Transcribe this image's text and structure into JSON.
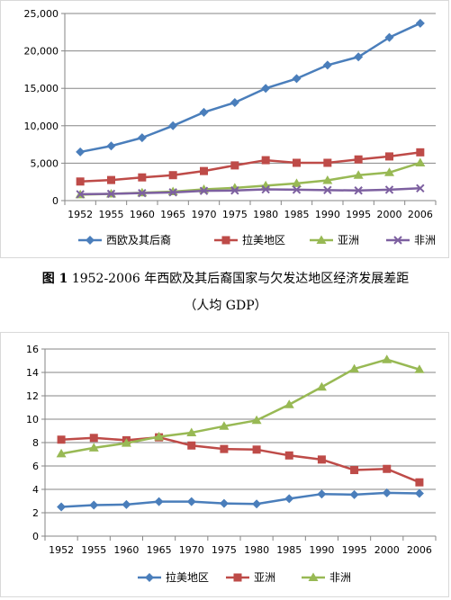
{
  "caption": {
    "fig_label": "图 1",
    "line1": "1952-2006 年西欧及其后裔国家与欠发达地区经济发展差距",
    "line2": "（人均 GDP）"
  },
  "colors": {
    "blue": "#4a7ebb",
    "red": "#be4b48",
    "green": "#98b954",
    "purple": "#7d60a0",
    "grid": "#868686"
  },
  "chart_data": [
    {
      "type": "line",
      "x": [
        "1952",
        "1955",
        "1960",
        "1965",
        "1970",
        "1975",
        "1980",
        "1985",
        "1990",
        "1995",
        "2000",
        "2006"
      ],
      "yticks": [
        "0",
        "5,000",
        "10,000",
        "15,000",
        "20,000",
        "25,000"
      ],
      "ylim": [
        0,
        25000
      ],
      "grid": true,
      "legend": "bottom",
      "series": [
        {
          "name": "西欧及其后裔",
          "marker": "diamond",
          "color": "#4a7ebb",
          "values": [
            6500,
            7300,
            8400,
            10000,
            11800,
            13100,
            15000,
            16300,
            18100,
            19200,
            21800,
            23700
          ]
        },
        {
          "name": "拉美地区",
          "marker": "square",
          "color": "#be4b48",
          "values": [
            2550,
            2750,
            3100,
            3400,
            3950,
            4700,
            5400,
            5050,
            5050,
            5500,
            5900,
            6450
          ]
        },
        {
          "name": "亚洲",
          "marker": "triangle",
          "color": "#98b954",
          "values": [
            800,
            900,
            1050,
            1200,
            1500,
            1700,
            2000,
            2300,
            2700,
            3400,
            3750,
            5050
          ]
        },
        {
          "name": "非洲",
          "marker": "x",
          "color": "#7d60a0",
          "values": [
            850,
            900,
            1000,
            1100,
            1300,
            1350,
            1500,
            1450,
            1400,
            1350,
            1450,
            1650
          ]
        }
      ]
    },
    {
      "type": "line",
      "x": [
        "1952",
        "1955",
        "1960",
        "1965",
        "1970",
        "1975",
        "1980",
        "1985",
        "1990",
        "1995",
        "2000",
        "2006"
      ],
      "yticks": [
        "0",
        "2",
        "4",
        "6",
        "8",
        "10",
        "12",
        "14",
        "16"
      ],
      "ylim": [
        0,
        16
      ],
      "grid": true,
      "legend": "bottom",
      "series": [
        {
          "name": "拉美地区",
          "marker": "diamond",
          "color": "#4a7ebb",
          "values": [
            2.5,
            2.65,
            2.7,
            2.95,
            2.95,
            2.8,
            2.75,
            3.2,
            3.6,
            3.55,
            3.7,
            3.65
          ]
        },
        {
          "name": "亚洲",
          "marker": "square",
          "color": "#be4b48",
          "values": [
            8.25,
            8.4,
            8.2,
            8.45,
            7.75,
            7.45,
            7.4,
            6.9,
            6.55,
            5.65,
            5.75,
            4.6
          ]
        },
        {
          "name": "非洲",
          "marker": "triangle",
          "color": "#98b954",
          "values": [
            7.05,
            7.55,
            7.95,
            8.5,
            8.85,
            9.4,
            9.9,
            11.25,
            12.75,
            14.3,
            15.1,
            14.25
          ]
        }
      ]
    }
  ]
}
